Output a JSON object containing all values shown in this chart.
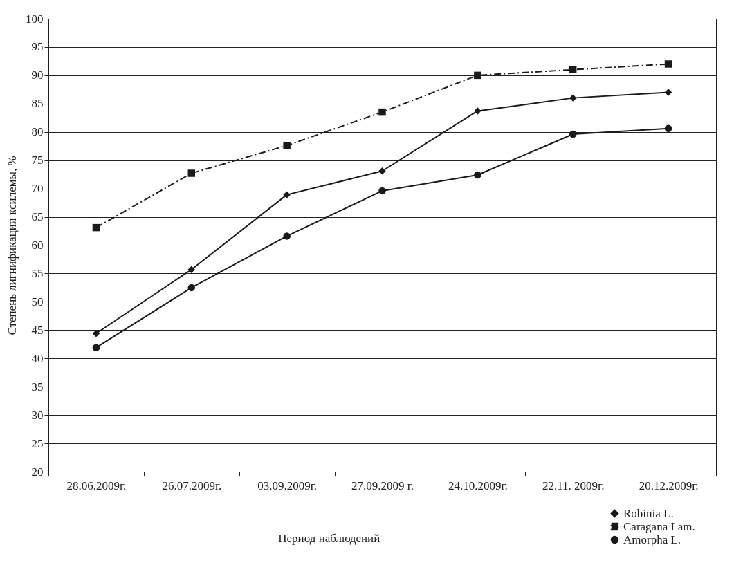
{
  "chart_data": {
    "type": "line",
    "xlabel": "Период наблюдений",
    "ylabel": "Степень лигнификации ксилемы, %",
    "categories": [
      "28.06.2009г.",
      "26.07.2009г.",
      "03.09.2009г.",
      "27.09.2009 г.",
      "24.10.2009г.",
      "22.11. 2009г.",
      "20.12.2009г."
    ],
    "series": [
      {
        "name": "Robinia L.",
        "color": "#1a1a1a",
        "marker": "diamond",
        "line_style": "solid",
        "values": [
          44.4,
          55.7,
          68.9,
          73.1,
          83.7,
          86.0,
          87.0
        ]
      },
      {
        "name": "Caragana Lam.",
        "color": "#1a1a1a",
        "marker": "square",
        "line_style": "dashed",
        "values": [
          63.1,
          72.7,
          77.6,
          83.5,
          90.0,
          91.0,
          92.0
        ]
      },
      {
        "name": "Amorpha L.",
        "color": "#1a1a1a",
        "marker": "circle",
        "line_style": "solid",
        "values": [
          41.9,
          52.5,
          61.6,
          69.6,
          72.4,
          79.6,
          80.6
        ]
      }
    ],
    "ylim": [
      20,
      100
    ],
    "yticks": [
      20,
      25,
      30,
      35,
      40,
      45,
      50,
      55,
      60,
      65,
      70,
      75,
      80,
      85,
      90,
      95,
      100
    ],
    "grid": "y",
    "legend": "bottom right"
  }
}
